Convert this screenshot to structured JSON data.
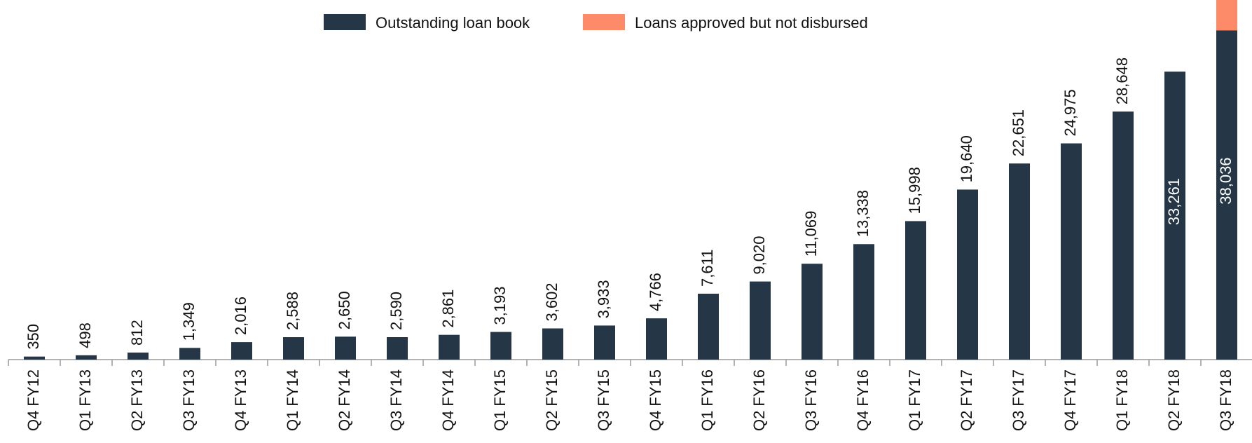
{
  "chart_data": {
    "type": "bar",
    "stacked": true,
    "categories": [
      "Q4 FY12",
      "Q1 FY13",
      "Q2 FY13",
      "Q3 FY13",
      "Q4 FY13",
      "Q1 FY14",
      "Q2 FY14",
      "Q3 FY14",
      "Q4 FY14",
      "Q1 FY15",
      "Q2 FY15",
      "Q3 FY15",
      "Q4 FY15",
      "Q1 FY16",
      "Q2 FY16",
      "Q3 FY16",
      "Q4 FY16",
      "Q1 FY17",
      "Q2 FY17",
      "Q3 FY17",
      "Q4 FY17",
      "Q1 FY18",
      "Q2 FY18",
      "Q3 FY18"
    ],
    "series": [
      {
        "name": "Outstanding loan book",
        "color": "#253746",
        "values": [
          350,
          498,
          812,
          1349,
          2016,
          2588,
          2650,
          2590,
          2861,
          3193,
          3602,
          3933,
          4766,
          7611,
          9020,
          11069,
          13338,
          15998,
          19640,
          22651,
          24975,
          28648,
          33261,
          38036
        ],
        "value_labels": [
          "350",
          "498",
          "812",
          "1,349",
          "2,016",
          "2,588",
          "2,650",
          "2,590",
          "2,861",
          "3,193",
          "3,602",
          "3,933",
          "4,766",
          "7,611",
          "9,020",
          "11,069",
          "13,338",
          "15,998",
          "19,640",
          "22,651",
          "24,975",
          "28,648",
          "33,261",
          "38,036"
        ]
      },
      {
        "name": "Loans approved but not disbursed",
        "color": "#fd8a68",
        "values": [
          null,
          null,
          null,
          null,
          null,
          null,
          null,
          null,
          null,
          null,
          null,
          null,
          null,
          null,
          null,
          null,
          null,
          null,
          null,
          null,
          null,
          null,
          null,
          3500
        ]
      }
    ],
    "legend": "top"
  }
}
